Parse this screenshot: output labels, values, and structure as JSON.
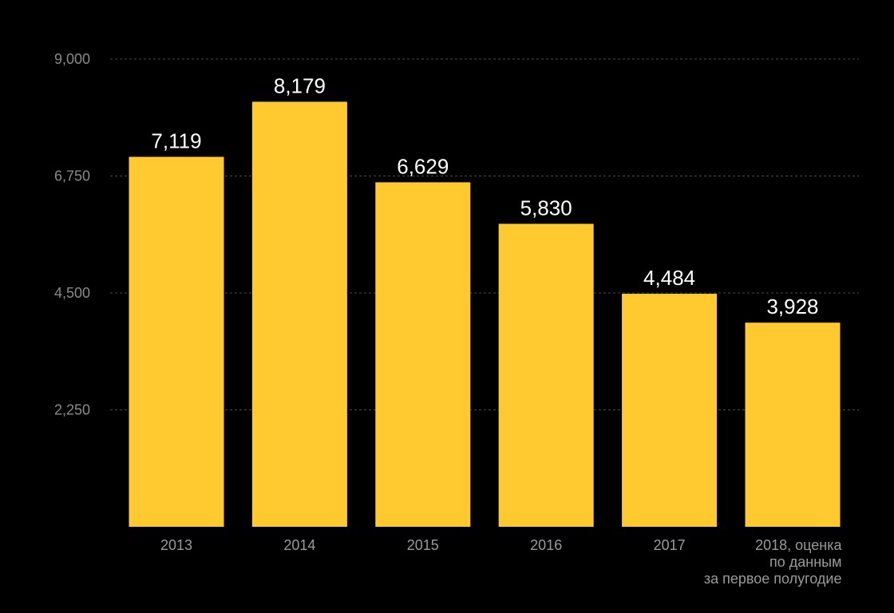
{
  "chart_data": {
    "type": "bar",
    "title": "",
    "xlabel": "",
    "ylabel": "",
    "categories": [
      [
        "2013"
      ],
      [
        "2014"
      ],
      [
        "2015"
      ],
      [
        "2016"
      ],
      [
        "2017"
      ],
      [
        "2018, оценка",
        "по данным",
        "за первое полугодие"
      ]
    ],
    "values": [
      7119,
      8179,
      6629,
      5830,
      4484,
      3928
    ],
    "value_labels": [
      "7,119",
      "8,179",
      "6,629",
      "5,830",
      "4,484",
      "3,928"
    ],
    "ylim": [
      0,
      9000
    ],
    "yticks": [
      2250,
      4500,
      6750,
      9000
    ],
    "ytick_labels": [
      "2,250",
      "4,500",
      "6,750",
      "9,000"
    ],
    "grid": true,
    "legend": "none",
    "colors": {
      "bar": "#FFC930",
      "background": "#000000",
      "value_text": "#FFFFFF",
      "axis_text": "#8A8A8A",
      "grid": "#4A4A4A"
    }
  }
}
